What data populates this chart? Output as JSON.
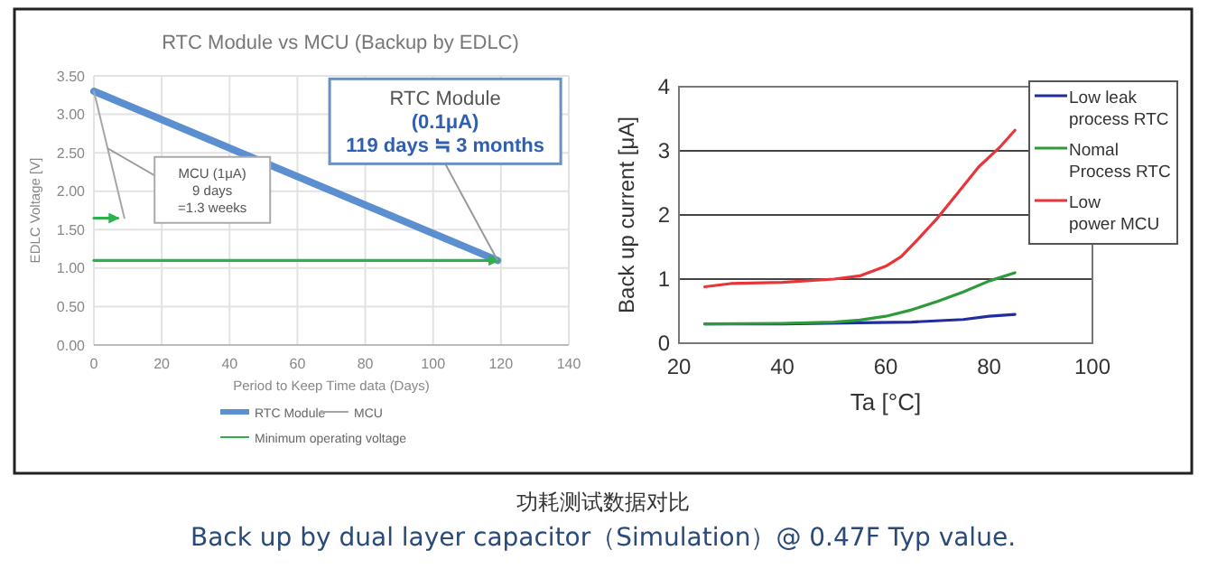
{
  "chart_data": [
    {
      "type": "line",
      "title": "RTC Module vs MCU (Backup by EDLC)",
      "xlabel": "Period to Keep Time data (Days)",
      "ylabel": "EDLC Voltage [V]",
      "xlim": [
        0,
        140
      ],
      "xticks": [
        0,
        20,
        40,
        60,
        80,
        100,
        120,
        140
      ],
      "ylim": [
        0,
        3.5
      ],
      "yticks": [
        {
          "value": 0,
          "label": "0.00"
        },
        {
          "value": 0.5,
          "label": "0.50"
        },
        {
          "value": 1,
          "label": "1.00"
        },
        {
          "value": 1.5,
          "label": "1.50"
        },
        {
          "value": 2,
          "label": "2.00"
        },
        {
          "value": 2.5,
          "label": "2.50"
        },
        {
          "value": 3,
          "label": "3.00"
        },
        {
          "value": 3.5,
          "label": "3.50"
        }
      ],
      "grid": true,
      "legend": "bottom",
      "series": [
        {
          "name": "RTC Module",
          "color": "#5b8fd0",
          "x": [
            0,
            119
          ],
          "values": [
            3.3,
            1.1
          ]
        },
        {
          "name": "MCU",
          "color": "#a6a6a6",
          "x": [
            0,
            9
          ],
          "values": [
            3.3,
            1.65
          ]
        },
        {
          "name": "Minimum operating voltage",
          "color": "#2eb04a",
          "x": [
            0,
            119
          ],
          "values": [
            1.1,
            1.1
          ]
        },
        {
          "color": "#2eb04a",
          "x": [
            0,
            7
          ],
          "values": [
            1.65,
            1.65
          ]
        }
      ],
      "annotations": [
        "MCU (1μA)\n9 days\n=1.3 weeks",
        {
          "text": "RTC Module\n(0.1μA)\n119 days ≒ 3 months",
          "x": 119,
          "y": 1.1
        }
      ]
    },
    {
      "type": "line",
      "xlabel": "Ta [°C]",
      "ylabel": "Back up current [μA]",
      "xlim": [
        20,
        100
      ],
      "xticks": [
        20,
        40,
        60,
        80,
        100
      ],
      "ylim": [
        0,
        4
      ],
      "yticks": [
        0,
        1,
        2,
        3,
        4
      ],
      "grid": "y",
      "legend": "right",
      "series": [
        {
          "name": "Low leak process RTC",
          "color": "#1f2d9e",
          "x": [
            25,
            40,
            55,
            65,
            75,
            80,
            85
          ],
          "values": [
            0.3,
            0.3,
            0.32,
            0.33,
            0.37,
            0.42,
            0.45
          ]
        },
        {
          "name": "Nomal Process RTC",
          "color": "#2e9a3a",
          "x": [
            25,
            40,
            50,
            55,
            60,
            65,
            70,
            75,
            80,
            85
          ],
          "values": [
            0.3,
            0.31,
            0.33,
            0.36,
            0.42,
            0.52,
            0.65,
            0.8,
            0.97,
            1.1
          ]
        },
        {
          "name": "Low power MCU",
          "color": "#e8353a",
          "x": [
            25,
            30,
            40,
            50,
            55,
            60,
            63,
            66,
            70,
            74,
            78,
            82,
            85
          ],
          "values": [
            0.88,
            0.93,
            0.95,
            1.0,
            1.05,
            1.2,
            1.35,
            1.6,
            1.95,
            2.35,
            2.75,
            3.05,
            3.32
          ]
        }
      ]
    },
    {
      "type": "other",
      "annotations": [
        "功耗测试数据对比",
        "Back up by dual layer capacitor（Simulation）@ 0.47F Typ value."
      ]
    }
  ]
}
